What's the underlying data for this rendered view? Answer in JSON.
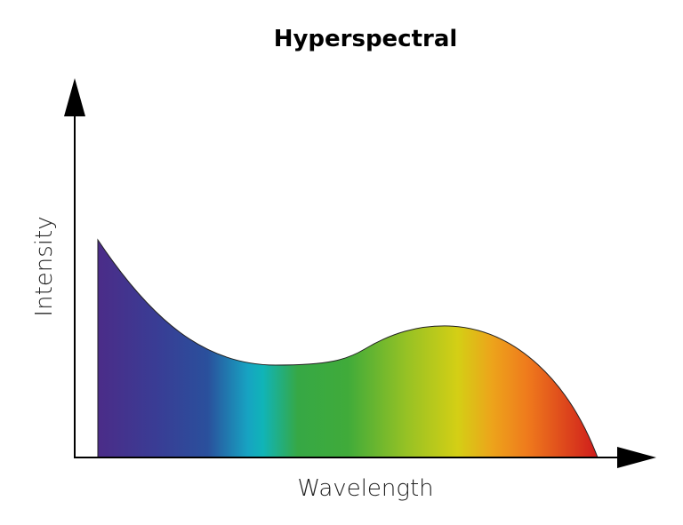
{
  "title": "Hyperspectral",
  "x_axis_label": "Wavelength",
  "y_axis_label": "Intensity"
}
